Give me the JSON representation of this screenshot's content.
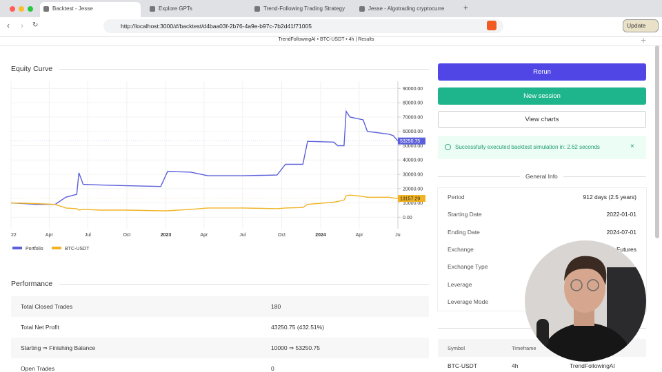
{
  "browser": {
    "tabs": [
      "Backtest - Jesse",
      "Explore GPTs",
      "Trend-Following Trading Strategy",
      "Jesse - Algotrading cryptocurre"
    ],
    "url": "http://localhost:3000/#/backtest/d4baa03f-2b76-4a9e-b97c-7b2d41f71005",
    "update_button": "Update"
  },
  "header": {
    "breadcrumb": "TrendFollowingAI • BTC-USDT • 4h | Results"
  },
  "chart_data": {
    "type": "line",
    "title": "Equity Curve",
    "x": [
      "2022-01-01",
      "2022-02-01",
      "2022-03-01",
      "2022-04-15",
      "2022-05-10",
      "2022-06-05",
      "2022-06-10",
      "2022-06-20",
      "2022-08-01",
      "2022-10-01",
      "2022-12-20",
      "2023-01-05",
      "2023-03-01",
      "2023-04-10",
      "2023-07-01",
      "2023-09-20",
      "2023-10-10",
      "2023-11-20",
      "2023-12-01",
      "2024-02-01",
      "2024-02-10",
      "2024-02-25",
      "2024-03-01",
      "2024-03-10",
      "2024-04-10",
      "2024-04-20",
      "2024-06-10",
      "2024-06-20",
      "2024-07-01"
    ],
    "series": [
      {
        "name": "Portfolio",
        "color": "#5b5fd9",
        "values": [
          10000,
          9500,
          9000,
          9000,
          14000,
          16000,
          31000,
          23000,
          22500,
          22000,
          21500,
          32000,
          31500,
          29000,
          29000,
          29500,
          37000,
          37000,
          53000,
          52500,
          50000,
          50000,
          74000,
          70000,
          68000,
          60000,
          58000,
          57000,
          53250.75
        ]
      },
      {
        "name": "BTC-USDT",
        "color": "#f0b323",
        "values": [
          10000,
          9800,
          9500,
          9000,
          6500,
          6000,
          5000,
          5500,
          5000,
          5000,
          4500,
          4500,
          5500,
          6500,
          6500,
          6000,
          6500,
          6800,
          9000,
          10500,
          11000,
          12000,
          15000,
          15500,
          14500,
          14000,
          14000,
          13500,
          13157.29
        ]
      }
    ],
    "xlim": [
      "2022-01-01",
      "2024-07-01"
    ],
    "xticks": [
      {
        "value": "2022-01-01",
        "label": "22"
      },
      {
        "value": "2022-04-01",
        "label": "Apr"
      },
      {
        "value": "2022-07-01",
        "label": "Jul"
      },
      {
        "value": "2022-10-01",
        "label": "Oct"
      },
      {
        "value": "2023-01-01",
        "label": "2023"
      },
      {
        "value": "2023-04-01",
        "label": "Apr"
      },
      {
        "value": "2023-07-01",
        "label": "Jul"
      },
      {
        "value": "2023-10-01",
        "label": "Oct"
      },
      {
        "value": "2024-01-01",
        "label": "2024"
      },
      {
        "value": "2024-04-01",
        "label": "Apr"
      },
      {
        "value": "2024-07-01",
        "label": "Ju"
      }
    ],
    "ylim": [
      -8000,
      94000
    ],
    "yticks": [
      {
        "value": 0,
        "label": "0.00"
      },
      {
        "value": 10000,
        "label": "10000.00"
      },
      {
        "value": 20000,
        "label": "20000.00"
      },
      {
        "value": 30000,
        "label": "30000.00"
      },
      {
        "value": 40000,
        "label": "40000.00"
      },
      {
        "value": 50000,
        "label": "50000.00"
      },
      {
        "value": 60000,
        "label": "60000.00"
      },
      {
        "value": 70000,
        "label": "70000.00"
      },
      {
        "value": 80000,
        "label": "80000.00"
      },
      {
        "value": 90000,
        "label": "90000.00"
      }
    ],
    "grid": true
  },
  "performance": {
    "title": "Performance",
    "rows": [
      [
        "Total Closed Trades",
        "180"
      ],
      [
        "Total Net Profit",
        "43250.75 (432.51%)"
      ],
      [
        "Starting ⇒ Finishing Balance",
        "10000 ⇒ 53250.75"
      ],
      [
        "Open Trades",
        "0"
      ]
    ]
  },
  "actions": {
    "rerun": "Rerun",
    "new_session": "New session",
    "view_charts": "View charts"
  },
  "alert": {
    "message": "Successfully executed backtest simulation in: 2.62 seconds"
  },
  "general_info": {
    "title": "General Info",
    "rows": [
      [
        "Period",
        "912 days (2.5 years)"
      ],
      [
        "Starting Date",
        "2022-01-01"
      ],
      [
        "Ending Date",
        "2024-07-01"
      ],
      [
        "Exchange",
        "Futures"
      ],
      [
        "Exchange Type"
      ],
      [
        "Leverage"
      ],
      [
        "Leverage Mode"
      ]
    ]
  },
  "routes": {
    "headers": [
      "Symbol",
      "Timeframe"
    ],
    "rows": [
      [
        "BTC-USDT",
        "4h",
        "TrendFollowingAI"
      ]
    ]
  }
}
